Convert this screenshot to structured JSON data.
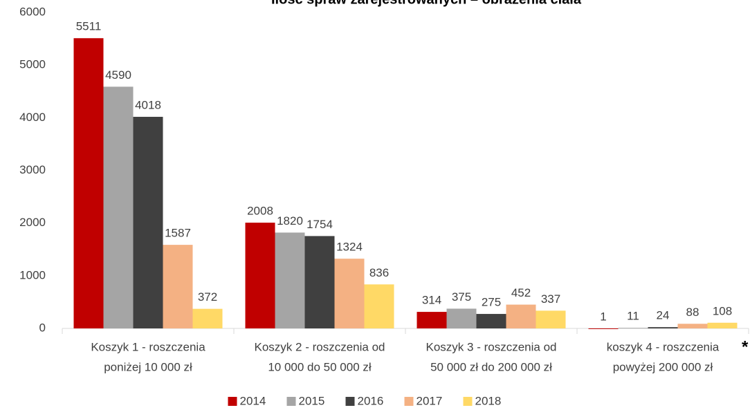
{
  "chart_data": {
    "type": "bar",
    "title": "Ilość spraw zarejestrowanych – obrażenia ciała",
    "categories": [
      [
        "Koszyk 1 - roszczenia",
        "poniżej 10 000 zł"
      ],
      [
        "Koszyk 2 - roszczenia od",
        "10 000 do 50 000 zł"
      ],
      [
        "Koszyk 3 - roszczenia od",
        "50 000 zł do 200 000 zł"
      ],
      [
        "koszyk 4 - roszczenia",
        "powyżej 200 000 zł"
      ]
    ],
    "annotations": [
      "*"
    ],
    "series": [
      {
        "name": "2014",
        "color": "#c00000",
        "values": [
          5511,
          2008,
          314,
          1
        ]
      },
      {
        "name": "2015",
        "color": "#a5a5a5",
        "values": [
          4590,
          1820,
          375,
          11
        ]
      },
      {
        "name": "2016",
        "color": "#404040",
        "values": [
          4018,
          1754,
          275,
          24
        ]
      },
      {
        "name": "2017",
        "color": "#f4b183",
        "values": [
          1587,
          1324,
          452,
          88
        ]
      },
      {
        "name": "2018",
        "color": "#ffd966",
        "values": [
          372,
          836,
          337,
          108
        ]
      }
    ],
    "ylim": [
      0,
      6000
    ],
    "yticks": [
      0,
      1000,
      2000,
      3000,
      4000,
      5000,
      6000
    ],
    "grid": false,
    "legend": "bottom"
  }
}
